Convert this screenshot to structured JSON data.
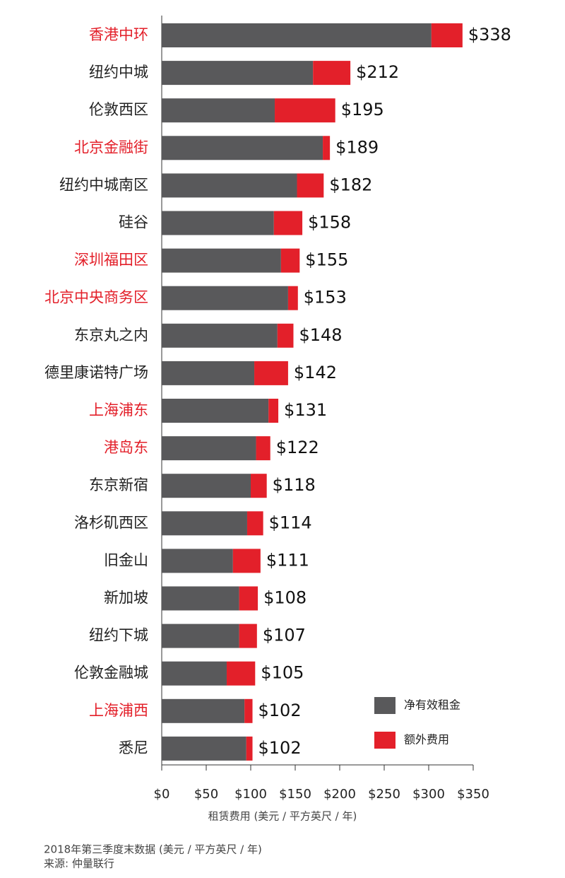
{
  "chart_data": {
    "type": "stacked-barh",
    "categories": [
      "香港中环",
      "纽约中城",
      "伦敦西区",
      "北京金融街",
      "纽约中城南区",
      "硅谷",
      "深圳福田区",
      "北京中央商务区",
      "东京丸之内",
      "德里康诺特广场",
      "上海浦东",
      "港岛东",
      "东京新宿",
      "洛杉矶西区",
      "旧金山",
      "新加坡",
      "纽约下城",
      "伦敦金融城",
      "上海浦西",
      "悉尼"
    ],
    "category_colors": [
      "#e3202a",
      "#222222",
      "#222222",
      "#e3202a",
      "#222222",
      "#222222",
      "#e3202a",
      "#e3202a",
      "#222222",
      "#222222",
      "#e3202a",
      "#e3202a",
      "#222222",
      "#222222",
      "#222222",
      "#222222",
      "#222222",
      "#222222",
      "#e3202a",
      "#222222"
    ],
    "series": [
      {
        "name": "净有效租金",
        "color": "#59595b",
        "values": [
          303,
          170,
          127,
          181,
          152,
          126,
          134,
          142,
          130,
          104,
          120,
          106,
          100,
          96,
          80,
          87,
          87,
          73,
          93,
          95
        ]
      },
      {
        "name": "额外费用",
        "color": "#e3202a",
        "values": [
          35,
          42,
          68,
          8,
          30,
          32,
          21,
          11,
          18,
          38,
          11,
          16,
          18,
          18,
          31,
          21,
          20,
          32,
          9,
          7
        ]
      }
    ],
    "total_labels": [
      "$338",
      "$212",
      "$195",
      "$189",
      "$182",
      "$158",
      "$155",
      "$153",
      "$148",
      "$142",
      "$131",
      "$122",
      "$118",
      "$114",
      "$111",
      "$108",
      "$107",
      "$105",
      "$102",
      "$102"
    ],
    "xlim": [
      0,
      350
    ],
    "xticks": [
      {
        "value": 0,
        "label": "$0"
      },
      {
        "value": 50,
        "label": "$50"
      },
      {
        "value": 100,
        "label": "$100"
      },
      {
        "value": 150,
        "label": "$150"
      },
      {
        "value": 200,
        "label": "$200"
      },
      {
        "value": 250,
        "label": "$250"
      },
      {
        "value": 300,
        "label": "$300"
      },
      {
        "value": 350,
        "label": "$350"
      }
    ],
    "x_label": "租赁费用 (美元 / 平方英尺 / 年)",
    "footnotes": [
      "2018年第三季度末数据 (美元 / 平方英尺 / 年)",
      "来源: 仲量联行"
    ]
  }
}
